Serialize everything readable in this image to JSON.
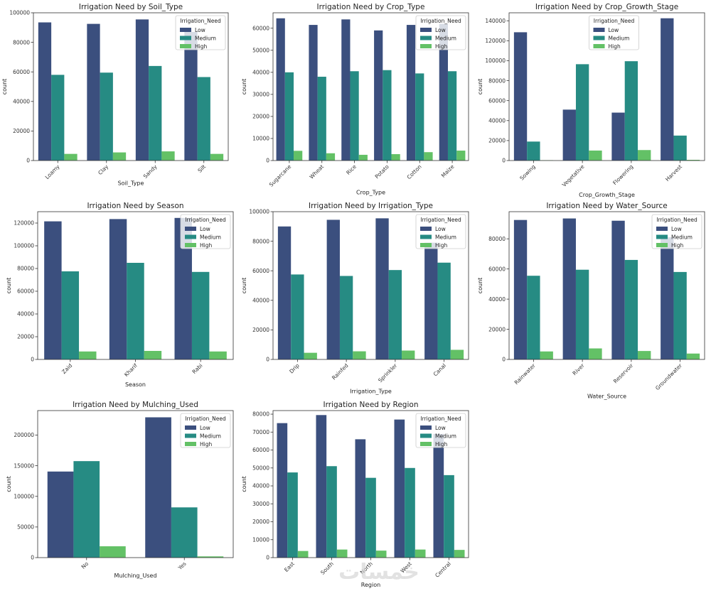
{
  "legend": {
    "title": "Irrigation_Need",
    "labels": [
      "Low",
      "Medium",
      "High"
    ]
  },
  "colors": {
    "Low": "#3b4f7e",
    "Medium": "#268b83",
    "High": "#63c166"
  },
  "watermark": "خمسات",
  "chart_data": [
    {
      "type": "bar",
      "title": "Irrigation Need by Soil_Type",
      "xlabel": "Soil_Type",
      "ylabel": "count",
      "ylim": [
        0,
        100000
      ],
      "yticks": [
        0,
        20000,
        40000,
        60000,
        80000,
        100000
      ],
      "legend_position": "top-right",
      "categories": [
        "Loamy",
        "Clay",
        "Sandy",
        "Silt"
      ],
      "series": [
        {
          "name": "Low",
          "values": [
            93500,
            92500,
            95500,
            87000
          ]
        },
        {
          "name": "Medium",
          "values": [
            58000,
            59500,
            64000,
            56500
          ]
        },
        {
          "name": "High",
          "values": [
            4500,
            5500,
            6200,
            4500
          ]
        }
      ]
    },
    {
      "type": "bar",
      "title": "Irrigation Need by Crop_Type",
      "xlabel": "Crop_Type",
      "ylabel": "count",
      "ylim": [
        0,
        67000
      ],
      "yticks": [
        0,
        10000,
        20000,
        30000,
        40000,
        50000,
        60000
      ],
      "legend_position": "top-right",
      "categories": [
        "Sugarcane",
        "Wheat",
        "Rice",
        "Potato",
        "Cotton",
        "Maize"
      ],
      "series": [
        {
          "name": "Low",
          "values": [
            64500,
            61500,
            64000,
            59000,
            61500,
            62000
          ]
        },
        {
          "name": "Medium",
          "values": [
            40000,
            38000,
            40500,
            41000,
            39500,
            40500
          ]
        },
        {
          "name": "High",
          "values": [
            4400,
            3300,
            2600,
            2900,
            3800,
            4500
          ]
        }
      ]
    },
    {
      "type": "bar",
      "title": "Irrigation Need by Crop_Growth_Stage",
      "xlabel": "Crop_Growth_Stage",
      "ylabel": "count",
      "ylim": [
        0,
        148000
      ],
      "yticks": [
        0,
        20000,
        40000,
        60000,
        80000,
        100000,
        120000,
        140000
      ],
      "legend_position": "top-center",
      "categories": [
        "Sowing",
        "Vegetative",
        "Flowering",
        "Harvest"
      ],
      "series": [
        {
          "name": "Low",
          "values": [
            128500,
            51000,
            48000,
            142500
          ]
        },
        {
          "name": "Medium",
          "values": [
            19000,
            96500,
            99500,
            25000
          ]
        },
        {
          "name": "High",
          "values": [
            300,
            10000,
            10500,
            700
          ]
        }
      ]
    },
    {
      "type": "bar",
      "title": "Irrigation Need by Season",
      "xlabel": "Season",
      "ylabel": "count",
      "ylim": [
        0,
        130000
      ],
      "yticks": [
        0,
        20000,
        40000,
        60000,
        80000,
        100000,
        120000
      ],
      "legend_position": "top-right",
      "categories": [
        "Zaid",
        "Kharif",
        "Rabi"
      ],
      "series": [
        {
          "name": "Low",
          "values": [
            121500,
            123500,
            124500
          ]
        },
        {
          "name": "Medium",
          "values": [
            77500,
            85000,
            77000
          ]
        },
        {
          "name": "High",
          "values": [
            7000,
            7500,
            7000
          ]
        }
      ]
    },
    {
      "type": "bar",
      "title": "Irrigation Need by Irrigation_Type",
      "xlabel": "Irrigation_Type",
      "ylabel": "count",
      "ylim": [
        0,
        100000
      ],
      "yticks": [
        0,
        20000,
        40000,
        60000,
        80000,
        100000
      ],
      "legend_position": "top-right",
      "categories": [
        "Drip",
        "Rainfed",
        "Sprinkler",
        "Canal"
      ],
      "series": [
        {
          "name": "Low",
          "values": [
            90000,
            94500,
            95500,
            79000
          ]
        },
        {
          "name": "Medium",
          "values": [
            57500,
            56500,
            60500,
            65500
          ]
        },
        {
          "name": "High",
          "values": [
            4500,
            5500,
            6000,
            6500
          ]
        }
      ]
    },
    {
      "type": "bar",
      "title": "Irrigation Need by Water_Source",
      "xlabel": "Water_Source",
      "ylabel": "count",
      "ylim": [
        0,
        98000
      ],
      "yticks": [
        0,
        20000,
        40000,
        60000,
        80000
      ],
      "legend_position": "top-right",
      "categories": [
        "Rainwater",
        "River",
        "Reservoir",
        "Groundwater"
      ],
      "series": [
        {
          "name": "Low",
          "values": [
            92500,
            93500,
            92000,
            81000
          ]
        },
        {
          "name": "Medium",
          "values": [
            55500,
            59500,
            66000,
            58000
          ]
        },
        {
          "name": "High",
          "values": [
            5300,
            7300,
            5600,
            3900
          ]
        }
      ]
    },
    {
      "type": "bar",
      "title": "Irrigation Need by Mulching_Used",
      "xlabel": "Mulching_Used",
      "ylabel": "count",
      "ylim": [
        0,
        240000
      ],
      "yticks": [
        0,
        50000,
        100000,
        150000,
        200000
      ],
      "legend_position": "top-right",
      "categories": [
        "No",
        "Yes"
      ],
      "series": [
        {
          "name": "Low",
          "values": [
            140500,
            229000
          ]
        },
        {
          "name": "Medium",
          "values": [
            157500,
            82000
          ]
        },
        {
          "name": "High",
          "values": [
            18500,
            2000
          ]
        }
      ]
    },
    {
      "type": "bar",
      "title": "Irrigation Need by Region",
      "xlabel": "Region",
      "ylabel": "count",
      "ylim": [
        0,
        82000
      ],
      "yticks": [
        0,
        10000,
        20000,
        30000,
        40000,
        50000,
        60000,
        70000,
        80000
      ],
      "legend_position": "top-right",
      "categories": [
        "East",
        "South",
        "North",
        "West",
        "Central"
      ],
      "series": [
        {
          "name": "Low",
          "values": [
            75000,
            79500,
            66000,
            77000,
            69000
          ]
        },
        {
          "name": "Medium",
          "values": [
            47500,
            51000,
            44500,
            50000,
            46000
          ]
        },
        {
          "name": "High",
          "values": [
            3700,
            4500,
            3900,
            4500,
            4300
          ]
        }
      ]
    }
  ]
}
